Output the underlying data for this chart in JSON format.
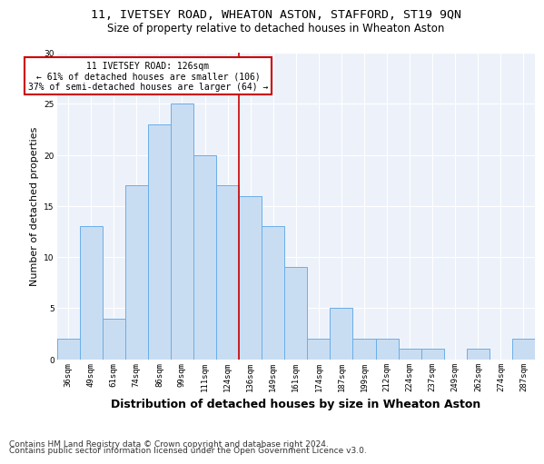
{
  "title1": "11, IVETSEY ROAD, WHEATON ASTON, STAFFORD, ST19 9QN",
  "title2": "Size of property relative to detached houses in Wheaton Aston",
  "xlabel": "Distribution of detached houses by size in Wheaton Aston",
  "ylabel": "Number of detached properties",
  "categories": [
    "36sqm",
    "49sqm",
    "61sqm",
    "74sqm",
    "86sqm",
    "99sqm",
    "111sqm",
    "124sqm",
    "136sqm",
    "149sqm",
    "161sqm",
    "174sqm",
    "187sqm",
    "199sqm",
    "212sqm",
    "224sqm",
    "237sqm",
    "249sqm",
    "262sqm",
    "274sqm",
    "287sqm"
  ],
  "values": [
    2,
    13,
    4,
    17,
    23,
    25,
    20,
    17,
    16,
    13,
    9,
    2,
    5,
    2,
    2,
    1,
    1,
    0,
    1,
    0,
    2
  ],
  "bar_color": "#c9ddf2",
  "bar_edge_color": "#6aaee8",
  "vline_x_idx": 7.5,
  "vline_color": "#cc0000",
  "annotation_text": "11 IVETSEY ROAD: 126sqm\n← 61% of detached houses are smaller (106)\n37% of semi-detached houses are larger (64) →",
  "annotation_box_color": "#ffffff",
  "annotation_box_edge_color": "#cc0000",
  "footnote1": "Contains HM Land Registry data © Crown copyright and database right 2024.",
  "footnote2": "Contains public sector information licensed under the Open Government Licence v3.0.",
  "ylim": [
    0,
    30
  ],
  "yticks": [
    0,
    5,
    10,
    15,
    20,
    25,
    30
  ],
  "bg_color": "#edf2fa",
  "grid_color": "#ffffff",
  "title1_fontsize": 9.5,
  "title2_fontsize": 8.5,
  "ylabel_fontsize": 8,
  "xlabel_fontsize": 9,
  "tick_fontsize": 6.5,
  "footnote_fontsize": 6.5,
  "annotation_fontsize": 7
}
